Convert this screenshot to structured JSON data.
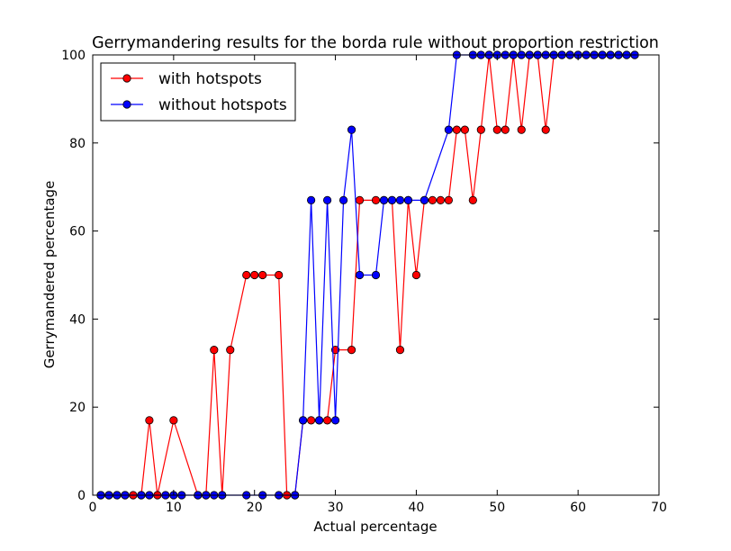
{
  "chart_data": {
    "type": "line",
    "title": "Gerrymandering results for the borda rule without proportion restriction",
    "xlabel": "Actual percentage",
    "ylabel": "Gerrymandered percentage",
    "xlim": [
      0,
      70
    ],
    "ylim": [
      0,
      100
    ],
    "xticks": [
      0,
      10,
      20,
      30,
      40,
      50,
      60,
      70
    ],
    "yticks": [
      0,
      20,
      40,
      60,
      80,
      100
    ],
    "grid": false,
    "legend_position": "top-left",
    "series": [
      {
        "name": "with hotspots",
        "color": "#ff0000",
        "x": [
          1,
          2,
          3,
          4,
          5,
          6,
          7,
          8,
          10,
          13,
          14,
          15,
          16,
          17,
          19,
          20,
          21,
          23,
          24,
          25,
          26,
          27,
          28,
          29,
          30,
          32,
          33,
          35,
          36,
          37,
          38,
          39,
          40,
          41,
          42,
          43,
          44,
          45,
          46,
          47,
          48,
          49,
          50,
          51,
          52,
          53,
          54,
          55,
          56,
          57,
          58,
          59,
          60,
          61,
          62,
          63,
          64,
          65,
          66,
          67
        ],
        "y": [
          0,
          0,
          0,
          0,
          0,
          0,
          17,
          0,
          17,
          0,
          0,
          33,
          0,
          33,
          50,
          50,
          50,
          50,
          0,
          0,
          17,
          17,
          17,
          17,
          33,
          33,
          67,
          67,
          67,
          67,
          33,
          67,
          50,
          67,
          67,
          67,
          67,
          83,
          83,
          67,
          83,
          100,
          83,
          83,
          100,
          83,
          100,
          100,
          83,
          100,
          100,
          100,
          100,
          100,
          100,
          100,
          100,
          100,
          100,
          100
        ]
      },
      {
        "name": "without hotspots",
        "color": "#0000ff",
        "x": [
          1,
          2,
          3,
          4,
          6,
          7,
          9,
          10,
          11,
          13,
          14,
          15,
          16,
          19,
          21,
          23,
          25,
          26,
          27,
          28,
          29,
          30,
          31,
          32,
          33,
          35,
          36,
          37,
          38,
          39,
          41,
          44,
          45,
          47,
          48,
          49,
          50,
          51,
          52,
          53,
          54,
          55,
          56,
          57,
          58,
          59,
          60,
          61,
          62,
          63,
          64,
          65,
          66,
          67
        ],
        "y": [
          0,
          0,
          0,
          0,
          0,
          0,
          0,
          0,
          0,
          0,
          0,
          0,
          0,
          0,
          0,
          0,
          0,
          17,
          67,
          17,
          67,
          17,
          67,
          83,
          50,
          50,
          67,
          67,
          67,
          67,
          67,
          83,
          100,
          100,
          100,
          100,
          100,
          100,
          100,
          100,
          100,
          100,
          100,
          100,
          100,
          100,
          100,
          100,
          100,
          100,
          100,
          100,
          100,
          100
        ]
      }
    ]
  }
}
